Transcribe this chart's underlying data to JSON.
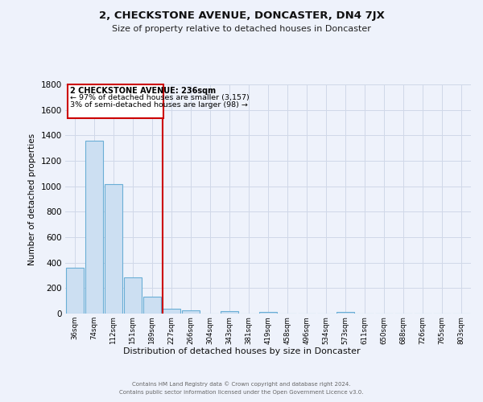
{
  "title": "2, CHECKSTONE AVENUE, DONCASTER, DN4 7JX",
  "subtitle": "Size of property relative to detached houses in Doncaster",
  "xlabel": "Distribution of detached houses by size in Doncaster",
  "ylabel": "Number of detached properties",
  "bar_labels": [
    "36sqm",
    "74sqm",
    "112sqm",
    "151sqm",
    "189sqm",
    "227sqm",
    "266sqm",
    "304sqm",
    "343sqm",
    "381sqm",
    "419sqm",
    "458sqm",
    "496sqm",
    "534sqm",
    "573sqm",
    "611sqm",
    "650sqm",
    "688sqm",
    "726sqm",
    "765sqm",
    "803sqm"
  ],
  "bar_values": [
    360,
    1360,
    1020,
    285,
    130,
    40,
    25,
    0,
    20,
    0,
    15,
    0,
    0,
    0,
    12,
    0,
    0,
    0,
    0,
    0,
    0
  ],
  "bar_color": "#ccdff2",
  "bar_edge_color": "#6aaed6",
  "vline_index": 5,
  "vline_color": "#cc0000",
  "ylim": [
    0,
    1800
  ],
  "yticks": [
    0,
    200,
    400,
    600,
    800,
    1000,
    1200,
    1400,
    1600,
    1800
  ],
  "annotation_title": "2 CHECKSTONE AVENUE: 236sqm",
  "annotation_line1": "← 97% of detached houses are smaller (3,157)",
  "annotation_line2": "3% of semi-detached houses are larger (98) →",
  "annotation_box_facecolor": "#ffffff",
  "annotation_box_edgecolor": "#cc0000",
  "grid_color": "#d0d8e8",
  "background_color": "#eef2fb",
  "footer_line1": "Contains HM Land Registry data © Crown copyright and database right 2024.",
  "footer_line2": "Contains public sector information licensed under the Open Government Licence v3.0."
}
